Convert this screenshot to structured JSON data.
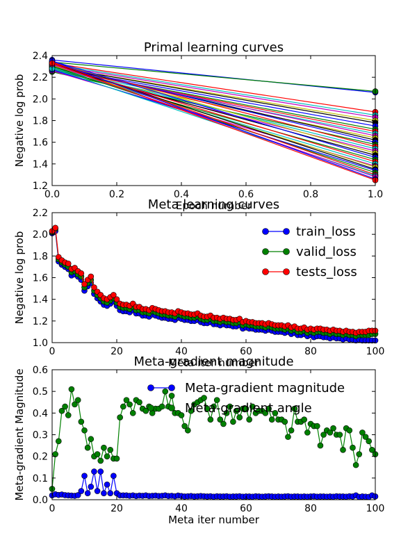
{
  "chart_data": [
    {
      "type": "line",
      "title": "Primal learning curves",
      "xlabel": "Epoch number",
      "ylabel": "Negative log prob",
      "xlim": [
        0,
        1
      ],
      "ylim": [
        1.2,
        2.4
      ],
      "xticks": [
        "0.0",
        "0.2",
        "0.4",
        "0.6",
        "0.8",
        "1.0"
      ],
      "yticks": [
        "1.2",
        "1.4",
        "1.6",
        "1.8",
        "2.0",
        "2.2",
        "2.4"
      ],
      "x": [
        0,
        1
      ],
      "marker": "circle",
      "series": [
        {
          "color": "#0000ff",
          "values": [
            2.36,
            2.06
          ]
        },
        {
          "color": "#008000",
          "values": [
            2.34,
            2.07
          ]
        },
        {
          "color": "#ff0000",
          "values": [
            2.33,
            1.88
          ]
        },
        {
          "color": "#00bfbf",
          "values": [
            2.32,
            1.85
          ]
        },
        {
          "color": "#bf00bf",
          "values": [
            2.31,
            1.83
          ]
        },
        {
          "color": "#bfbf00",
          "values": [
            2.3,
            1.8
          ]
        },
        {
          "color": "#000000",
          "values": [
            2.3,
            1.78
          ]
        },
        {
          "color": "#0000ff",
          "values": [
            2.29,
            1.75
          ]
        },
        {
          "color": "#008000",
          "values": [
            2.28,
            1.72
          ]
        },
        {
          "color": "#ff0000",
          "values": [
            2.28,
            1.7
          ]
        },
        {
          "color": "#00bfbf",
          "values": [
            2.27,
            1.68
          ]
        },
        {
          "color": "#bf00bf",
          "values": [
            2.3,
            1.66
          ]
        },
        {
          "color": "#bfbf00",
          "values": [
            2.26,
            1.64
          ]
        },
        {
          "color": "#000000",
          "values": [
            2.31,
            1.62
          ]
        },
        {
          "color": "#0000ff",
          "values": [
            2.32,
            1.6
          ]
        },
        {
          "color": "#008000",
          "values": [
            2.25,
            1.58
          ]
        },
        {
          "color": "#ff0000",
          "values": [
            2.33,
            1.56
          ]
        },
        {
          "color": "#00bfbf",
          "values": [
            2.29,
            1.54
          ]
        },
        {
          "color": "#bf00bf",
          "values": [
            2.27,
            1.52
          ]
        },
        {
          "color": "#bfbf00",
          "values": [
            2.34,
            1.5
          ]
        },
        {
          "color": "#000000",
          "values": [
            2.3,
            1.48
          ]
        },
        {
          "color": "#0000ff",
          "values": [
            2.35,
            1.46
          ]
        },
        {
          "color": "#008000",
          "values": [
            2.28,
            1.44
          ]
        },
        {
          "color": "#ff0000",
          "values": [
            2.32,
            1.42
          ]
        },
        {
          "color": "#00bfbf",
          "values": [
            2.29,
            1.4
          ]
        },
        {
          "color": "#bf00bf",
          "values": [
            2.26,
            1.38
          ]
        },
        {
          "color": "#bfbf00",
          "values": [
            2.31,
            1.37
          ]
        },
        {
          "color": "#000000",
          "values": [
            2.33,
            1.35
          ]
        },
        {
          "color": "#0000ff",
          "values": [
            2.27,
            1.34
          ]
        },
        {
          "color": "#008000",
          "values": [
            2.3,
            1.32
          ]
        },
        {
          "color": "#ff0000",
          "values": [
            2.34,
            1.3
          ]
        },
        {
          "color": "#00bfbf",
          "values": [
            2.28,
            1.29
          ]
        },
        {
          "color": "#bf00bf",
          "values": [
            2.32,
            1.28
          ]
        },
        {
          "color": "#0000ff",
          "values": [
            2.35,
            1.26
          ]
        },
        {
          "color": "#ff0000",
          "values": [
            2.33,
            1.25
          ]
        }
      ]
    },
    {
      "type": "line",
      "title": "Meta learning curves",
      "xlabel": "Meta iter number",
      "ylabel": "Negative log prob",
      "xlim": [
        0,
        100
      ],
      "ylim": [
        1.0,
        2.2
      ],
      "xticks": [
        "0",
        "20",
        "40",
        "60",
        "80",
        "100"
      ],
      "yticks": [
        "1.0",
        "1.2",
        "1.4",
        "1.6",
        "1.8",
        "2.0",
        "2.2"
      ],
      "legend_position": "top-right",
      "marker": "circle",
      "series": [
        {
          "name": "train_loss",
          "color": "#0000ff",
          "values": [
            2.01,
            2.03,
            1.75,
            1.72,
            1.7,
            1.68,
            1.62,
            1.63,
            1.61,
            1.58,
            1.48,
            1.52,
            1.55,
            1.45,
            1.41,
            1.38,
            1.35,
            1.34,
            1.36,
            1.38,
            1.34,
            1.3,
            1.29,
            1.29,
            1.28,
            1.3,
            1.27,
            1.27,
            1.25,
            1.25,
            1.24,
            1.26,
            1.25,
            1.24,
            1.23,
            1.23,
            1.22,
            1.22,
            1.21,
            1.23,
            1.22,
            1.21,
            1.21,
            1.2,
            1.2,
            1.21,
            1.19,
            1.18,
            1.18,
            1.19,
            1.17,
            1.17,
            1.16,
            1.17,
            1.16,
            1.16,
            1.15,
            1.15,
            1.16,
            1.13,
            1.14,
            1.13,
            1.13,
            1.12,
            1.12,
            1.12,
            1.11,
            1.12,
            1.11,
            1.1,
            1.1,
            1.1,
            1.09,
            1.1,
            1.08,
            1.09,
            1.07,
            1.07,
            1.08,
            1.06,
            1.07,
            1.05,
            1.06,
            1.06,
            1.05,
            1.05,
            1.04,
            1.05,
            1.04,
            1.04,
            1.03,
            1.04,
            1.03,
            1.03,
            1.02,
            1.03,
            1.02,
            1.02,
            1.02,
            1.02,
            1.02
          ]
        },
        {
          "name": "valid_loss",
          "color": "#008000",
          "values": [
            2.02,
            2.05,
            1.77,
            1.74,
            1.72,
            1.7,
            1.65,
            1.66,
            1.63,
            1.61,
            1.51,
            1.55,
            1.58,
            1.48,
            1.44,
            1.41,
            1.38,
            1.37,
            1.39,
            1.41,
            1.37,
            1.33,
            1.32,
            1.32,
            1.31,
            1.33,
            1.3,
            1.3,
            1.28,
            1.28,
            1.27,
            1.29,
            1.28,
            1.27,
            1.26,
            1.26,
            1.25,
            1.25,
            1.24,
            1.26,
            1.25,
            1.24,
            1.24,
            1.23,
            1.23,
            1.24,
            1.22,
            1.21,
            1.21,
            1.22,
            1.2,
            1.2,
            1.19,
            1.2,
            1.19,
            1.19,
            1.18,
            1.18,
            1.19,
            1.16,
            1.17,
            1.16,
            1.16,
            1.15,
            1.15,
            1.15,
            1.14,
            1.15,
            1.14,
            1.13,
            1.13,
            1.13,
            1.12,
            1.13,
            1.11,
            1.12,
            1.1,
            1.1,
            1.11,
            1.09,
            1.1,
            1.09,
            1.1,
            1.1,
            1.09,
            1.09,
            1.08,
            1.09,
            1.08,
            1.08,
            1.07,
            1.08,
            1.07,
            1.07,
            1.06,
            1.07,
            1.07,
            1.07,
            1.07,
            1.08,
            1.08
          ]
        },
        {
          "name": "tests_loss",
          "color": "#ff0000",
          "values": [
            2.03,
            2.06,
            1.79,
            1.76,
            1.74,
            1.73,
            1.68,
            1.69,
            1.66,
            1.64,
            1.54,
            1.58,
            1.61,
            1.51,
            1.47,
            1.44,
            1.41,
            1.4,
            1.42,
            1.44,
            1.4,
            1.36,
            1.35,
            1.35,
            1.34,
            1.36,
            1.33,
            1.33,
            1.31,
            1.31,
            1.3,
            1.32,
            1.31,
            1.3,
            1.29,
            1.29,
            1.28,
            1.28,
            1.27,
            1.29,
            1.28,
            1.27,
            1.27,
            1.26,
            1.26,
            1.27,
            1.25,
            1.24,
            1.24,
            1.25,
            1.23,
            1.23,
            1.22,
            1.23,
            1.22,
            1.22,
            1.21,
            1.21,
            1.22,
            1.19,
            1.2,
            1.19,
            1.19,
            1.18,
            1.18,
            1.18,
            1.17,
            1.18,
            1.17,
            1.16,
            1.16,
            1.16,
            1.15,
            1.16,
            1.14,
            1.15,
            1.13,
            1.13,
            1.14,
            1.12,
            1.13,
            1.12,
            1.13,
            1.13,
            1.12,
            1.12,
            1.11,
            1.12,
            1.11,
            1.11,
            1.1,
            1.11,
            1.1,
            1.1,
            1.09,
            1.1,
            1.1,
            1.1,
            1.11,
            1.11,
            1.11
          ]
        }
      ]
    },
    {
      "type": "line",
      "title": "Meta-gradient magnitude",
      "xlabel": "Meta iter number",
      "ylabel": "Meta-gradient Magnitude",
      "xlim": [
        0,
        100
      ],
      "ylim": [
        0,
        0.6
      ],
      "xticks": [
        "0",
        "20",
        "40",
        "60",
        "80",
        "100"
      ],
      "yticks": [
        "0.0",
        "0.1",
        "0.2",
        "0.3",
        "0.4",
        "0.5",
        "0.6"
      ],
      "legend_position": "top-right",
      "marker": "circle",
      "series": [
        {
          "name": "Meta-gradient magnitude",
          "color": "#0000ff",
          "values": [
            0.02,
            0.025,
            0.022,
            0.024,
            0.021,
            0.02,
            0.019,
            0.018,
            0.021,
            0.04,
            0.11,
            0.03,
            0.06,
            0.13,
            0.04,
            0.13,
            0.03,
            0.07,
            0.03,
            0.11,
            0.03,
            0.02,
            0.02,
            0.02,
            0.018,
            0.02,
            0.017,
            0.019,
            0.018,
            0.02,
            0.017,
            0.018,
            0.019,
            0.017,
            0.018,
            0.02,
            0.017,
            0.018,
            0.016,
            0.019,
            0.017,
            0.015,
            0.016,
            0.017,
            0.015,
            0.016,
            0.017,
            0.016,
            0.015,
            0.016,
            0.014,
            0.016,
            0.015,
            0.015,
            0.016,
            0.014,
            0.015,
            0.015,
            0.016,
            0.014,
            0.015,
            0.015,
            0.014,
            0.016,
            0.015,
            0.014,
            0.015,
            0.016,
            0.015,
            0.014,
            0.015,
            0.014,
            0.015,
            0.016,
            0.014,
            0.015,
            0.015,
            0.014,
            0.015,
            0.014,
            0.015,
            0.016,
            0.014,
            0.015,
            0.015,
            0.014,
            0.015,
            0.014,
            0.016,
            0.015,
            0.015,
            0.014,
            0.016,
            0.015,
            0.02,
            0.013,
            0.015,
            0.014,
            0.013,
            0.02,
            0.015
          ]
        },
        {
          "name": "Meta-gradient angle",
          "color": "#008000",
          "values": [
            0.05,
            0.21,
            0.27,
            0.41,
            0.43,
            0.39,
            0.51,
            0.44,
            0.46,
            0.36,
            0.32,
            0.24,
            0.28,
            0.2,
            0.21,
            0.18,
            0.24,
            0.2,
            0.23,
            0.19,
            0.19,
            0.38,
            0.43,
            0.46,
            0.44,
            0.4,
            0.46,
            0.45,
            0.42,
            0.41,
            0.43,
            0.4,
            0.42,
            0.42,
            0.43,
            0.5,
            0.43,
            0.48,
            0.4,
            0.4,
            0.39,
            0.34,
            0.32,
            0.41,
            0.44,
            0.45,
            0.46,
            0.47,
            0.42,
            0.37,
            0.43,
            0.46,
            0.37,
            0.35,
            0.4,
            0.43,
            0.36,
            0.41,
            0.38,
            0.42,
            0.42,
            0.37,
            0.43,
            0.4,
            0.41,
            0.41,
            0.4,
            0.42,
            0.37,
            0.4,
            0.37,
            0.37,
            0.36,
            0.29,
            0.32,
            0.42,
            0.36,
            0.36,
            0.37,
            0.31,
            0.35,
            0.34,
            0.34,
            0.25,
            0.3,
            0.32,
            0.31,
            0.33,
            0.3,
            0.3,
            0.23,
            0.33,
            0.32,
            0.24,
            0.16,
            0.21,
            0.31,
            0.29,
            0.27,
            0.23,
            0.21
          ]
        }
      ]
    }
  ]
}
